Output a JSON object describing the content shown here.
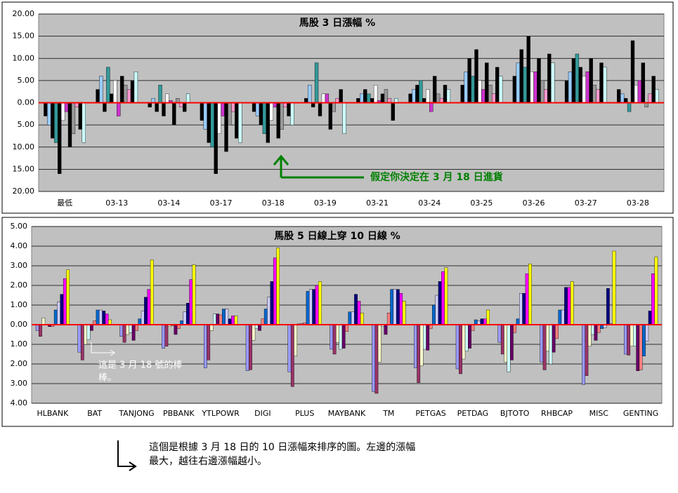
{
  "chart_data": [
    {
      "type": "bar",
      "title": "馬股 3 日漲幅 %",
      "categories": [
        "最低",
        "03-13",
        "03-14",
        "03-17",
        "03-18",
        "03-19",
        "03-21",
        "03-24",
        "03-25",
        "03-26",
        "03-27",
        "03-28"
      ],
      "series": [
        {
          "color": "#000000",
          "values": [
            -3,
            3,
            -1,
            -4,
            -2,
            1,
            1,
            2,
            4,
            6,
            5,
            3
          ]
        },
        {
          "color": "#99ccff",
          "values": [
            -5,
            6,
            1,
            -6,
            -3,
            4,
            2,
            3,
            7,
            9,
            7,
            2
          ]
        },
        {
          "color": "#000000",
          "values": [
            -8,
            -2,
            -2,
            -9,
            -5,
            -1,
            3,
            4,
            10,
            12,
            10,
            1
          ]
        },
        {
          "color": "#339999",
          "values": [
            -9,
            8,
            4,
            -10,
            -7,
            9,
            2,
            5,
            6,
            8,
            11,
            -2
          ]
        },
        {
          "color": "#000000",
          "values": [
            -16,
            2,
            -3,
            -16,
            -9,
            -3,
            1,
            1,
            12,
            15,
            8,
            14
          ]
        },
        {
          "color": "#ffffff",
          "values": [
            -4,
            5,
            2,
            -7,
            -4,
            2,
            4,
            3,
            5,
            7,
            6,
            4
          ]
        },
        {
          "color": "#cc33cc",
          "values": [
            -2,
            -3,
            0.5,
            -3,
            -1,
            2,
            0.5,
            -2,
            3,
            7,
            7,
            5
          ]
        },
        {
          "color": "#000000",
          "values": [
            -10,
            6,
            -5,
            -11,
            -8,
            -6,
            2,
            6,
            9,
            10,
            10,
            9
          ]
        },
        {
          "color": "#999999",
          "values": [
            -7,
            4,
            1,
            -5,
            -6,
            -2,
            3,
            2,
            4,
            5,
            4,
            -1
          ]
        },
        {
          "color": "#ff99cc",
          "values": [
            -1,
            3,
            -1,
            -2,
            -1,
            1,
            1,
            1,
            2,
            3,
            3,
            2
          ]
        },
        {
          "color": "#000000",
          "values": [
            -6,
            5,
            -2,
            -8,
            -3,
            3,
            -4,
            4,
            8,
            11,
            9,
            6
          ]
        },
        {
          "color": "#ccffff",
          "values": [
            -9,
            7,
            2,
            -9,
            -5,
            -7,
            1,
            3,
            6,
            9,
            8,
            3
          ]
        }
      ],
      "ylim": [
        -20,
        20
      ],
      "yticks": [
        {
          "value": 20,
          "label": "20.00"
        },
        {
          "value": 15,
          "label": "15.00"
        },
        {
          "value": 10,
          "label": "10.00"
        },
        {
          "value": 5,
          "label": "5.00"
        },
        {
          "value": 0,
          "label": "0.00"
        },
        {
          "value": -5,
          "label": "5.00"
        },
        {
          "value": -10,
          "label": "10.00"
        },
        {
          "value": -15,
          "label": "15.00"
        },
        {
          "value": -20,
          "label": "20.00"
        }
      ],
      "grid": true,
      "zero_line_color": "#ff0000",
      "plot_color": "#c0c0c0",
      "annotations": [
        "假定你決定在 3 月 18 日進貨"
      ]
    },
    {
      "type": "bar",
      "title": "馬股 5 日線上穿 10 日線 %",
      "categories": [
        "HLBANK",
        "BAT",
        "TANJONG",
        "PBBANK",
        "YTLPOWR",
        "DIGI",
        "PLUS",
        "MAYBANK",
        "TM",
        "PETGAS",
        "PETDAG",
        "BJTOTO",
        "RHBCAP",
        "MISC",
        "GENTING"
      ],
      "series": [
        {
          "color": "#9999ff",
          "values": [
            -0.3,
            -1.4,
            -0.6,
            -1.2,
            -2.2,
            -2.35,
            -2.4,
            -1.25,
            -3.4,
            -2.2,
            -2.25,
            -0.9,
            -1.9,
            -3.05,
            -1.5
          ]
        },
        {
          "color": "#993366",
          "values": [
            -0.6,
            -1.8,
            -0.9,
            -1.1,
            -1.8,
            -2.3,
            -3.15,
            -1.5,
            -3.5,
            -2.95,
            -2.5,
            -1.5,
            -2.3,
            -2.6,
            -1.55
          ]
        },
        {
          "color": "#ffffcc",
          "values": [
            0.35,
            -1.0,
            -0.5,
            -0.1,
            -0.3,
            -0.8,
            -1.6,
            -0.9,
            -1.9,
            -2.1,
            -1.75,
            -1.9,
            -1.35,
            -1.1,
            -1.1
          ]
        },
        {
          "color": "#ccffff",
          "values": [
            0,
            -0.75,
            -0.4,
            -0.05,
            0.55,
            -0.2,
            0.05,
            -1.25,
            -0.1,
            -1.25,
            -1.35,
            -2.4,
            -2.0,
            -0.5,
            -1.1
          ]
        },
        {
          "color": "#660066",
          "values": [
            -0.1,
            -0.3,
            -0.8,
            -0.5,
            0.55,
            -0.3,
            0.05,
            -1.2,
            -0.5,
            -1.3,
            -1.2,
            -1.8,
            -1.4,
            -0.8,
            -2.35
          ]
        },
        {
          "color": "#ff8080",
          "values": [
            -0.1,
            0.2,
            -0.3,
            -0.2,
            0.5,
            0.3,
            0.1,
            -0.35,
            0.6,
            -0.2,
            -0.3,
            -0.4,
            -0.7,
            -0.4,
            -2.3
          ]
        },
        {
          "color": "#0066cc",
          "values": [
            0.75,
            0.75,
            0.3,
            0.2,
            0.8,
            0.8,
            1.7,
            0.65,
            1.8,
            1.0,
            0.25,
            0.3,
            0.75,
            -0.2,
            -1.6
          ]
        },
        {
          "color": "#ccccff",
          "values": [
            1.15,
            0.75,
            0.7,
            0.65,
            0.8,
            1.4,
            1.8,
            0.65,
            1.8,
            1.5,
            0.2,
            1.6,
            0.75,
            -0.15,
            -0.85
          ]
        },
        {
          "color": "#000080",
          "values": [
            1.55,
            0.7,
            1.4,
            1.1,
            0.3,
            2.2,
            1.8,
            1.55,
            1.8,
            2.2,
            0.3,
            1.6,
            1.9,
            1.85,
            0.7
          ]
        },
        {
          "color": "#ff00ff",
          "values": [
            2.35,
            0.55,
            1.8,
            2.3,
            0.45,
            3.4,
            2.0,
            1.2,
            1.6,
            2.7,
            0.3,
            2.6,
            1.9,
            0.05,
            2.6
          ]
        },
        {
          "color": "#ffff00",
          "values": [
            2.8,
            0.25,
            3.3,
            3.05,
            0.45,
            3.9,
            2.2,
            0.6,
            1.2,
            2.9,
            0.75,
            3.1,
            2.2,
            3.75,
            3.45
          ]
        }
      ],
      "ylim": [
        -4,
        5
      ],
      "yticks": [
        {
          "value": 5,
          "label": "5.00"
        },
        {
          "value": 4,
          "label": "4.00"
        },
        {
          "value": 3,
          "label": "3.00"
        },
        {
          "value": 2,
          "label": "2.00"
        },
        {
          "value": 1,
          "label": "1.00"
        },
        {
          "value": 0,
          "label": "0.00"
        },
        {
          "value": -1,
          "label": "1.00"
        },
        {
          "value": -2,
          "label": "2.00"
        },
        {
          "value": -3,
          "label": "3.00"
        },
        {
          "value": -4,
          "label": "4.00"
        }
      ],
      "grid": true,
      "zero_line_color": "#ff0000",
      "plot_color": "#c0c0c0",
      "annotations": [
        "這是 3 月 18 號的棒",
        "棒。"
      ]
    }
  ],
  "note": [
    "這個是根據 3 月 18 日的 10 日漲幅來排序的圖。左邊的漲幅",
    "最大，越往右邊漲幅越小。"
  ]
}
